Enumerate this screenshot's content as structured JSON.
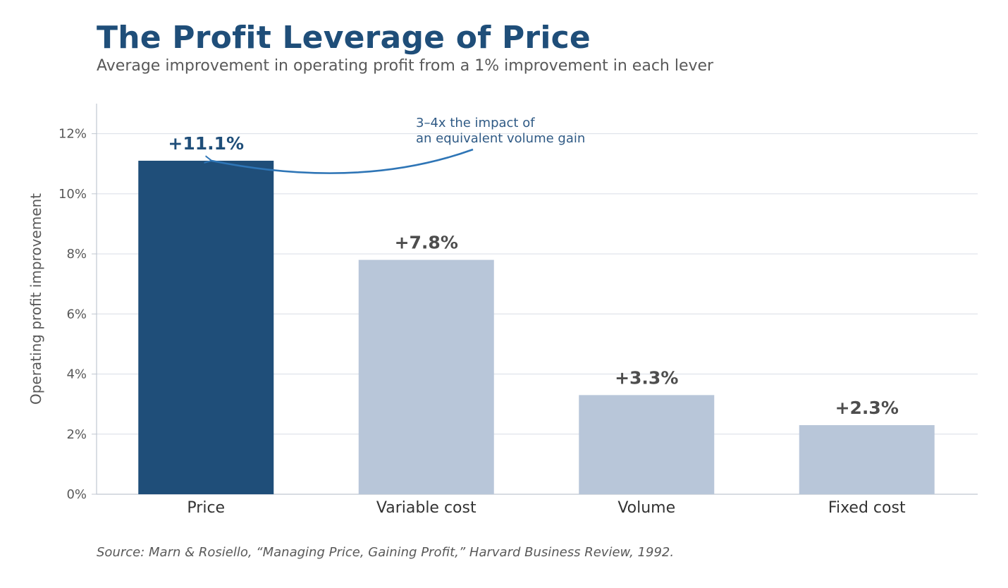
{
  "colors": {
    "title": "#1f4e79",
    "highlight_bar": "#1f4e79",
    "muted_bar": "#b8c6d9",
    "muted_label": "#4d4d4d",
    "annotation": "#2e75b6",
    "annotation_text": "#2f5a85",
    "grid": "#d9dee6",
    "axis": "#c0c7d1"
  },
  "source": "Source: Marn & Rosiello, “Managing Price, Gaining Profit,” Harvard Business Review, 1992.",
  "chart_data": {
    "type": "bar",
    "title": "The Profit Leverage of Price",
    "subtitle": "Average improvement in operating profit from a 1% improvement in each lever",
    "xlabel": "",
    "ylabel": "Operating profit improvement",
    "categories": [
      "Price",
      "Variable cost",
      "Volume",
      "Fixed cost"
    ],
    "values": [
      11.1,
      7.8,
      3.3,
      2.3
    ],
    "data_labels": [
      "+11.1%",
      "+7.8%",
      "+3.3%",
      "+2.3%"
    ],
    "highlight_index": 0,
    "ylim": [
      0,
      13
    ],
    "yticks": [
      0,
      2,
      4,
      6,
      8,
      10,
      12
    ],
    "ytick_labels": [
      "0%",
      "2%",
      "4%",
      "6%",
      "8%",
      "10%",
      "12%"
    ],
    "grid": "horizontal",
    "legend": "none",
    "annotation": {
      "lines": [
        "3–4x the impact of",
        "an equivalent volume gain"
      ],
      "target_category": "Price"
    }
  }
}
